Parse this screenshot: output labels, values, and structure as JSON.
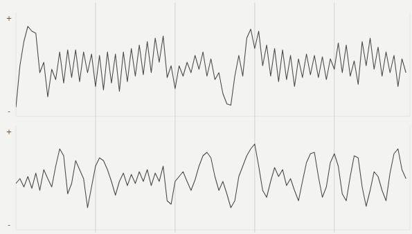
{
  "chart_data": [
    {
      "type": "line",
      "annotations": [
        "+",
        "-"
      ],
      "x": [
        0,
        0.05,
        0.1,
        0.15,
        0.2,
        0.25,
        0.3,
        0.35,
        0.4,
        0.45,
        0.5,
        0.55,
        0.6,
        0.65,
        0.7,
        0.75,
        0.8,
        0.85,
        0.9,
        0.95,
        1,
        1.05,
        1.1,
        1.15,
        1.2,
        1.25,
        1.3,
        1.35,
        1.4,
        1.45,
        1.5,
        1.55,
        1.6,
        1.65,
        1.7,
        1.75,
        1.8,
        1.85,
        1.9,
        1.95,
        2,
        2.05,
        2.1,
        2.15,
        2.2,
        2.25,
        2.3,
        2.35,
        2.4,
        2.45,
        2.5,
        2.55,
        2.6,
        2.65,
        2.7,
        2.75,
        2.8,
        2.85,
        2.9,
        2.95,
        3,
        3.05,
        3.1,
        3.15,
        3.2,
        3.25,
        3.3,
        3.35,
        3.4,
        3.45,
        3.5,
        3.55,
        3.6,
        3.65,
        3.7,
        3.75,
        3.8,
        3.85,
        3.9,
        3.95,
        4,
        4.05,
        4.1,
        4.15,
        4.2,
        4.25,
        4.3,
        4.35,
        4.4,
        4.45,
        4.5,
        4.55,
        4.6,
        4.65,
        4.7,
        4.75,
        4.8,
        4.85,
        4.9
      ],
      "series": [
        {
          "color": "#4a4a4a",
          "values": [
            -62,
            -2,
            33,
            55,
            48,
            45,
            -12,
            3,
            -47,
            -7,
            -22,
            18,
            -27,
            21,
            -19,
            21,
            -25,
            18,
            -12,
            15,
            -32,
            13,
            -37,
            18,
            -27,
            15,
            -39,
            18,
            -25,
            23,
            -17,
            28,
            -15,
            33,
            -12,
            38,
            3,
            41,
            -19,
            -2,
            -35,
            -2,
            -17,
            3,
            -12,
            13,
            -7,
            18,
            -17,
            8,
            -22,
            -12,
            -42,
            -57,
            -59,
            -17,
            13,
            -17,
            38,
            51,
            23,
            48,
            -2,
            28,
            -17,
            23,
            -25,
            21,
            -22,
            13,
            -32,
            8,
            -19,
            15,
            -15,
            13,
            -19,
            11,
            -22,
            8,
            -7,
            31,
            -12,
            28,
            -17,
            5,
            -29,
            33,
            -2,
            38,
            -7,
            25,
            -17,
            18,
            -12,
            13,
            -32,
            8,
            -12
          ]
        }
      ],
      "xlim": [
        0,
        4.95
      ],
      "ylim": [
        -75,
        75
      ],
      "xticks": [
        1,
        2,
        3,
        4
      ],
      "grid": true,
      "tick_labels": false
    },
    {
      "type": "line",
      "annotations": [
        "+",
        "-"
      ],
      "x": [
        0,
        0.05,
        0.1,
        0.15,
        0.2,
        0.25,
        0.3,
        0.35,
        0.4,
        0.45,
        0.5,
        0.55,
        0.6,
        0.65,
        0.7,
        0.75,
        0.8,
        0.85,
        0.9,
        0.95,
        1,
        1.05,
        1.1,
        1.15,
        1.2,
        1.25,
        1.3,
        1.35,
        1.4,
        1.45,
        1.5,
        1.55,
        1.6,
        1.65,
        1.7,
        1.75,
        1.8,
        1.85,
        1.9,
        1.95,
        2,
        2.05,
        2.1,
        2.15,
        2.2,
        2.25,
        2.3,
        2.35,
        2.4,
        2.45,
        2.5,
        2.55,
        2.6,
        2.65,
        2.7,
        2.75,
        2.8,
        2.85,
        2.9,
        2.95,
        3,
        3.05,
        3.1,
        3.15,
        3.2,
        3.25,
        3.3,
        3.35,
        3.4,
        3.45,
        3.5,
        3.55,
        3.6,
        3.65,
        3.7,
        3.75,
        3.8,
        3.85,
        3.9,
        3.95,
        4,
        4.05,
        4.1,
        4.15,
        4.2,
        4.25,
        4.3,
        4.35,
        4.4,
        4.45,
        4.5,
        4.55,
        4.6,
        4.65,
        4.7,
        4.75,
        4.8,
        4.85,
        4.9
      ],
      "series": [
        {
          "color": "#4a4a4a",
          "values": [
            -8,
            -1,
            -13,
            2,
            -15,
            7,
            -18,
            12,
            -1,
            -13,
            17,
            42,
            32,
            -23,
            -8,
            25,
            12,
            -1,
            -43,
            -13,
            17,
            29,
            25,
            12,
            -5,
            -25,
            -5,
            7,
            -11,
            5,
            -8,
            9,
            -5,
            12,
            -11,
            7,
            -5,
            17,
            -33,
            -38,
            -5,
            2,
            9,
            -5,
            -18,
            -3,
            17,
            32,
            37,
            29,
            2,
            -18,
            -5,
            -23,
            -43,
            -33,
            2,
            17,
            32,
            42,
            49,
            17,
            -18,
            -28,
            -5,
            15,
            2,
            12,
            -11,
            -1,
            -18,
            -33,
            -5,
            22,
            35,
            37,
            2,
            -28,
            -13,
            22,
            35,
            17,
            -23,
            -33,
            2,
            32,
            29,
            -13,
            -41,
            -18,
            9,
            2,
            -18,
            -33,
            7,
            35,
            42,
            12,
            -1
          ]
        }
      ],
      "xlim": [
        0,
        4.95
      ],
      "ylim": [
        -75,
        75
      ],
      "xticks": [
        1,
        2,
        3,
        4
      ],
      "grid": true,
      "tick_labels": false
    }
  ]
}
